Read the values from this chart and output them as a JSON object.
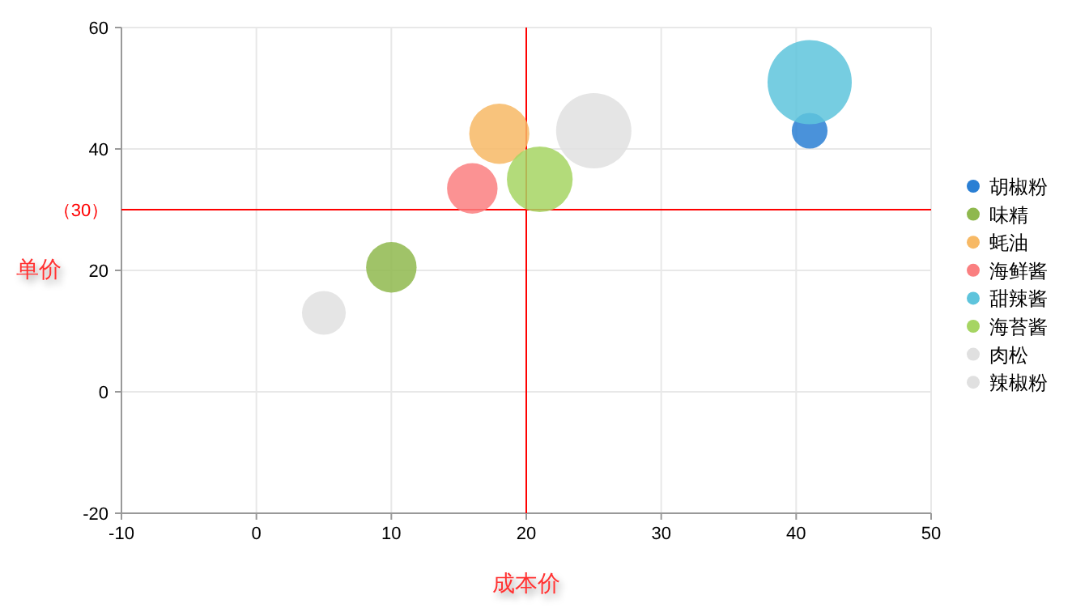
{
  "chart_data": {
    "type": "bubble",
    "xlabel": "成本价",
    "ylabel": "单价",
    "xlim": [
      -10,
      50
    ],
    "xticks": [
      -10,
      0,
      10,
      20,
      30,
      40,
      50
    ],
    "ylim": [
      -20,
      60
    ],
    "yticks": [
      -20,
      0,
      20,
      40,
      60
    ],
    "grid": true,
    "legend": "right",
    "ref_lines": [
      {
        "axis": "y",
        "value": 30,
        "label": "（30）",
        "color": "#ff0000"
      },
      {
        "axis": "x",
        "value": 20,
        "color": "#ff0000"
      }
    ],
    "series": [
      {
        "name": "胡椒粉",
        "color": "#2a7fd4",
        "x": [
          41
        ],
        "values": [
          43
        ],
        "sizes": [
          0.18
        ]
      },
      {
        "name": "味精",
        "color": "#8fb84e",
        "x": [
          10
        ],
        "values": [
          20.5
        ],
        "sizes": [
          0.36
        ]
      },
      {
        "name": "蚝油",
        "color": "#f7b965",
        "x": [
          18
        ],
        "values": [
          42.5
        ],
        "sizes": [
          0.51
        ]
      },
      {
        "name": "海鲜酱",
        "color": "#fa7f80",
        "x": [
          16
        ],
        "values": [
          33.5
        ],
        "sizes": [
          0.36
        ]
      },
      {
        "name": "甜辣酱",
        "color": "#5ec4dc",
        "x": [
          41
        ],
        "values": [
          51
        ],
        "sizes": [
          1
        ]
      },
      {
        "name": "海苔酱",
        "color": "#a6d563",
        "x": [
          21
        ],
        "values": [
          35
        ],
        "sizes": [
          0.61
        ]
      },
      {
        "name": "肉松",
        "color": "#e0e0e0",
        "x": [
          5
        ],
        "values": [
          13
        ],
        "sizes": [
          0.27
        ]
      },
      {
        "name": "辣椒粉",
        "color": "#e0e0e0",
        "x": [
          25
        ],
        "values": [
          43
        ],
        "sizes": [
          0.8
        ]
      }
    ]
  }
}
